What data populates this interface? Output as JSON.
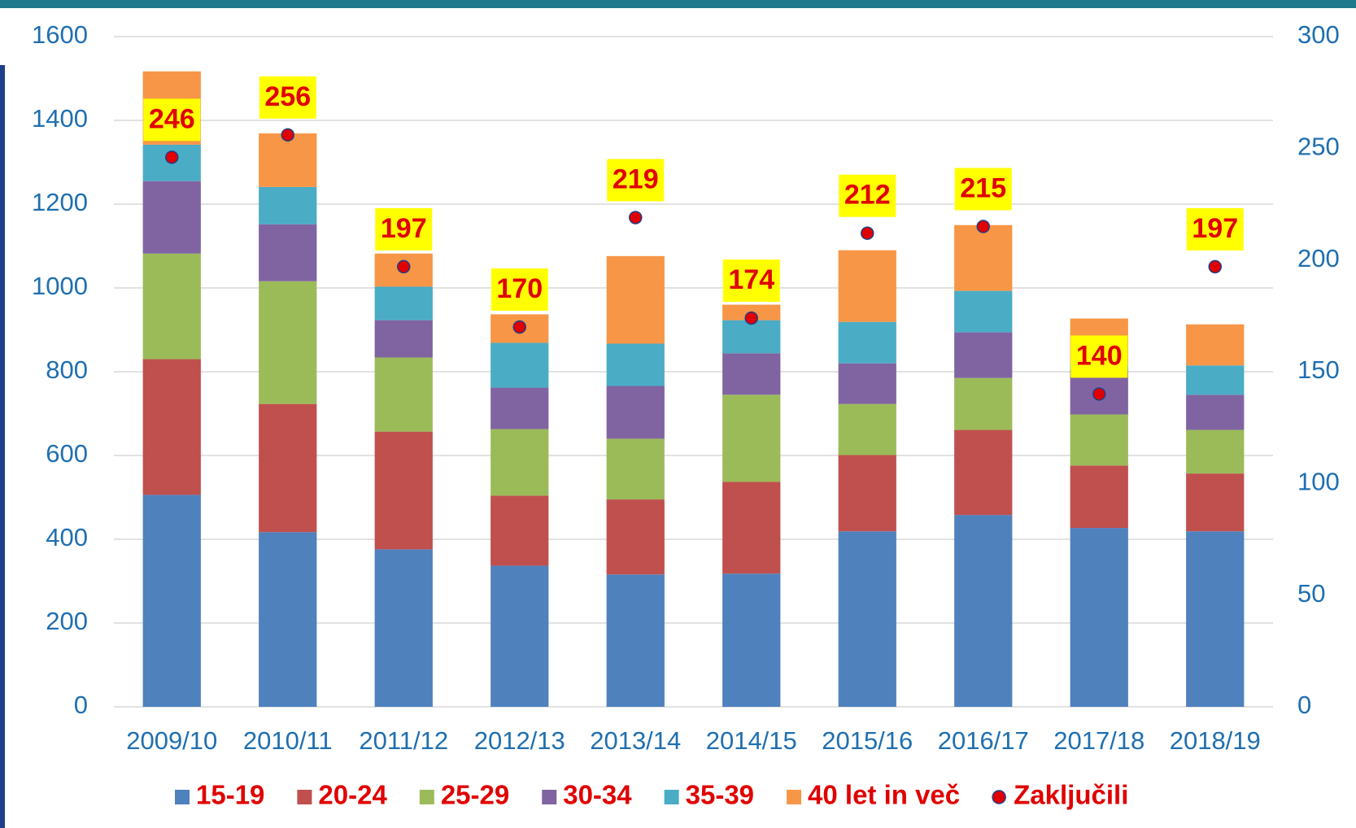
{
  "chart_data": {
    "type": "bar",
    "stacked": true,
    "categories": [
      "2009/10",
      "2010/11",
      "2011/12",
      "2012/13",
      "2013/14",
      "2014/15",
      "2015/16",
      "2016/17",
      "2017/18",
      "2018/19"
    ],
    "series": [
      {
        "name": "15-19",
        "color": "#4f81bd",
        "values": [
          506,
          417,
          376,
          337,
          316,
          318,
          419,
          458,
          427,
          419
        ]
      },
      {
        "name": "20-24",
        "color": "#c0504d",
        "values": [
          324,
          306,
          281,
          167,
          179,
          219,
          182,
          203,
          149,
          138
        ]
      },
      {
        "name": "25-29",
        "color": "#9bbb59",
        "values": [
          252,
          293,
          177,
          159,
          145,
          208,
          122,
          124,
          122,
          104
        ]
      },
      {
        "name": "30-34",
        "color": "#8064a2",
        "values": [
          173,
          136,
          89,
          99,
          126,
          99,
          97,
          109,
          107,
          84
        ]
      },
      {
        "name": "35-39",
        "color": "#4bacc6",
        "values": [
          87,
          89,
          80,
          107,
          101,
          79,
          99,
          99,
          13,
          70
        ]
      },
      {
        "name": "40 let in več",
        "color": "#f79646",
        "values": [
          175,
          128,
          79,
          68,
          209,
          37,
          171,
          157,
          109,
          98
        ]
      },
      {
        "name": "Zaključili",
        "color": "#e00000",
        "type": "scatter",
        "axis": "y2",
        "values": [
          246,
          256,
          197,
          170,
          219,
          174,
          212,
          215,
          140,
          197
        ]
      }
    ],
    "ylim": [
      0,
      1600
    ],
    "yticks": [
      0,
      200,
      400,
      600,
      800,
      1000,
      1200,
      1400,
      1600
    ],
    "y2lim": [
      0,
      300
    ],
    "y2ticks": [
      0,
      50,
      100,
      150,
      200,
      250,
      300
    ],
    "grid": true,
    "legend": "bottom"
  }
}
